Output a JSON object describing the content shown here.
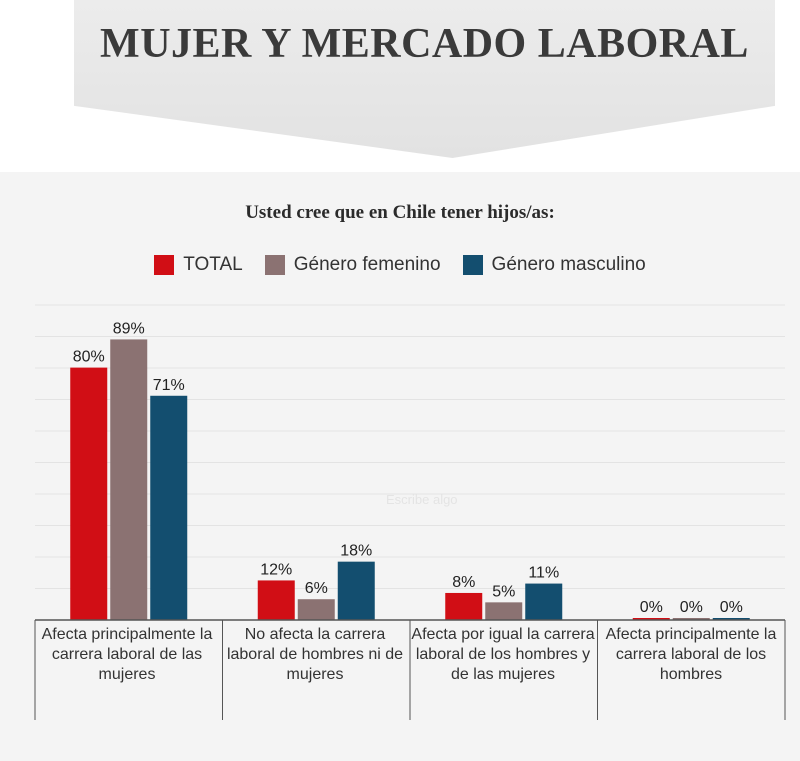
{
  "banner": {
    "title": "MUJER Y MERCADO LABORAL"
  },
  "watermark": "Escribe algo",
  "chart_data": {
    "type": "bar",
    "title": "Usted cree que en Chile tener hijos/as:",
    "categories": [
      "Afecta principalmente la carrera laboral de las mujeres",
      "No afecta la carrera laboral de hombres ni de mujeres",
      "Afecta por igual la carrera laboral de los hombres y de las mujeres",
      "Afecta principalmente la carrera laboral de los hombres"
    ],
    "series": [
      {
        "name": "TOTAL",
        "color": "#d10e15",
        "values": [
          80,
          12,
          8,
          0
        ],
        "labels": [
          "80%",
          "12%",
          "8%",
          "0%"
        ]
      },
      {
        "name": "Género femenino",
        "color": "#8b7272",
        "values": [
          89,
          6,
          5,
          0
        ],
        "labels": [
          "89%",
          "6%",
          "5%",
          "0%"
        ]
      },
      {
        "name": "Género masculino",
        "color": "#134e6f",
        "values": [
          71,
          18,
          11,
          0
        ],
        "labels": [
          "71%",
          "18%",
          "11%",
          "0%"
        ]
      }
    ],
    "ylim": [
      0,
      100
    ],
    "grid": true,
    "legend_position": "top-center",
    "xlabel": "",
    "ylabel": ""
  }
}
